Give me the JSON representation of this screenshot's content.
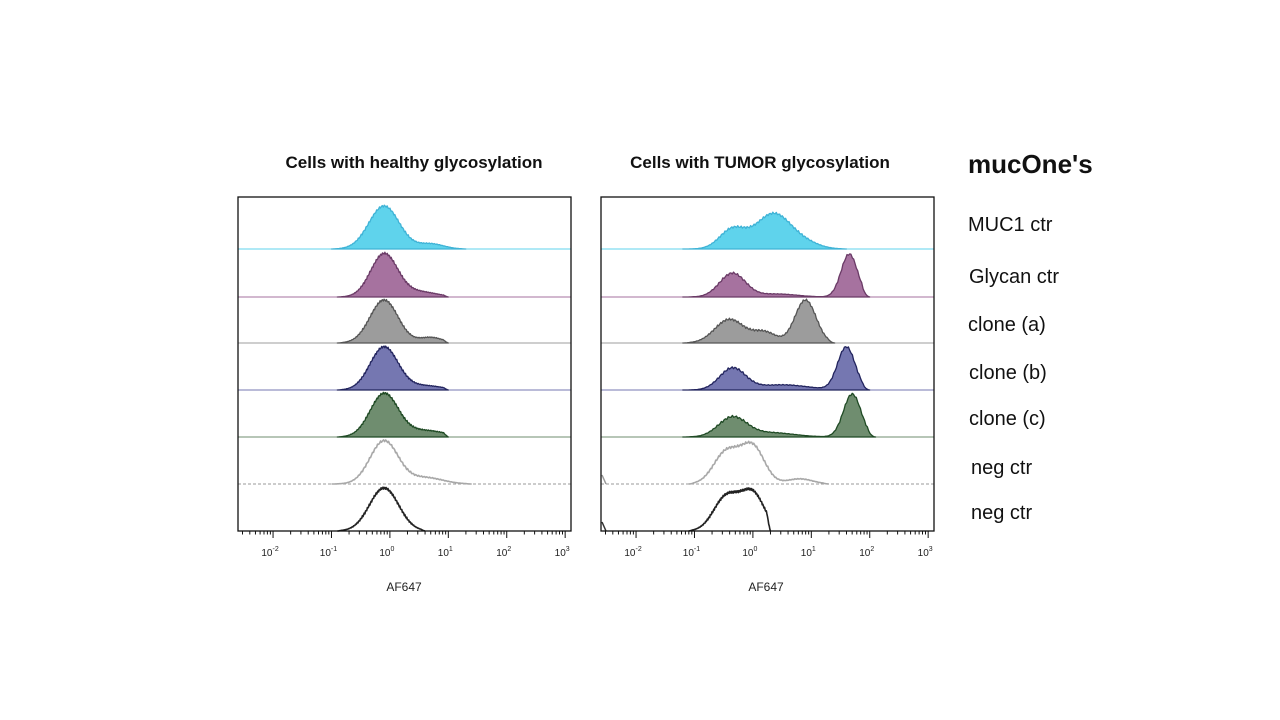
{
  "chart_data": {
    "type": "histogram",
    "legend_title": "mucOne's",
    "series": [
      {
        "name": "MUC1 ctr",
        "fill": "#5fd3ec",
        "stroke": "#3fb3d6",
        "filled": true,
        "dashed_baseline": false
      },
      {
        "name": "Glycan ctr",
        "fill": "#a6729f",
        "stroke": "#6a3a66",
        "filled": true,
        "dashed_baseline": false
      },
      {
        "name": "clone (a)",
        "fill": "#9c9c9c",
        "stroke": "#555555",
        "filled": true,
        "dashed_baseline": false
      },
      {
        "name": "clone (b)",
        "fill": "#7577b1",
        "stroke": "#22245e",
        "filled": true,
        "dashed_baseline": false
      },
      {
        "name": "clone (c)",
        "fill": "#6f8d6f",
        "stroke": "#1f4a24",
        "filled": true,
        "dashed_baseline": false
      },
      {
        "name": "neg ctr",
        "fill": "none",
        "stroke": "#a8a8a8",
        "filled": false,
        "dashed_baseline": true
      },
      {
        "name": "neg ctr",
        "fill": "none",
        "stroke": "#222222",
        "filled": false,
        "dashed_baseline": false
      }
    ],
    "panels": [
      {
        "title": "Cells with healthy glycosylation",
        "xlabel": "AF647",
        "xscale": "log",
        "xlim": [
          -2.6,
          3.1
        ],
        "xticks": [
          {
            "base": "10",
            "exp": "-2",
            "log": -2
          },
          {
            "base": "10",
            "exp": "-1",
            "log": -1
          },
          {
            "base": "10",
            "exp": "0",
            "log": 0
          },
          {
            "base": "10",
            "exp": "1",
            "log": 1
          },
          {
            "base": "10",
            "exp": "2",
            "log": 2
          },
          {
            "base": "10",
            "exp": "3",
            "log": 3
          }
        ],
        "histograms": [
          {
            "series": "MUC1 ctr",
            "peaks": [
              {
                "x": -0.1,
                "h": 1.0,
                "w": 0.26
              },
              {
                "x": 0.7,
                "h": 0.12,
                "w": 0.22
              }
            ],
            "range": [
              -1.0,
              1.3
            ]
          },
          {
            "series": "Glycan ctr",
            "peaks": [
              {
                "x": -0.1,
                "h": 1.0,
                "w": 0.23
              },
              {
                "x": 0.5,
                "h": 0.12,
                "w": 0.3
              }
            ],
            "range": [
              -0.9,
              1.0
            ]
          },
          {
            "series": "clone (a)",
            "peaks": [
              {
                "x": -0.1,
                "h": 1.0,
                "w": 0.24
              },
              {
                "x": 0.7,
                "h": 0.13,
                "w": 0.2
              }
            ],
            "range": [
              -0.9,
              1.0
            ]
          },
          {
            "series": "clone (b)",
            "peaks": [
              {
                "x": -0.1,
                "h": 1.0,
                "w": 0.24
              },
              {
                "x": 0.6,
                "h": 0.1,
                "w": 0.3
              }
            ],
            "range": [
              -0.9,
              1.0
            ]
          },
          {
            "series": "clone (c)",
            "peaks": [
              {
                "x": -0.1,
                "h": 1.0,
                "w": 0.24
              },
              {
                "x": 0.6,
                "h": 0.15,
                "w": 0.35
              }
            ],
            "range": [
              -0.9,
              1.0
            ]
          },
          {
            "series": "neg ctr",
            "peaks": [
              {
                "x": -0.1,
                "h": 1.0,
                "w": 0.24
              },
              {
                "x": 0.6,
                "h": 0.15,
                "w": 0.3
              }
            ],
            "range": [
              -1.0,
              1.4
            ]
          },
          {
            "series": "neg ctr",
            "peaks": [
              {
                "x": -0.1,
                "h": 1.0,
                "w": 0.25
              }
            ],
            "range": [
              -0.9,
              0.6
            ]
          }
        ]
      },
      {
        "title": "Cells with TUMOR glycosylation",
        "xlabel": "AF647",
        "xscale": "log",
        "xlim": [
          -2.6,
          3.1
        ],
        "xticks": [
          {
            "base": "10",
            "exp": "-2",
            "log": -2
          },
          {
            "base": "10",
            "exp": "-1",
            "log": -1
          },
          {
            "base": "10",
            "exp": "0",
            "log": 0
          },
          {
            "base": "10",
            "exp": "1",
            "log": 1
          },
          {
            "base": "10",
            "exp": "2",
            "log": 2
          },
          {
            "base": "10",
            "exp": "3",
            "log": 3
          }
        ],
        "histograms": [
          {
            "series": "MUC1 ctr",
            "peaks": [
              {
                "x": -0.35,
                "h": 0.45,
                "w": 0.22
              },
              {
                "x": 0.35,
                "h": 0.82,
                "w": 0.3
              },
              {
                "x": 0.9,
                "h": 0.12,
                "w": 0.25
              }
            ],
            "range": [
              -1.2,
              1.6
            ]
          },
          {
            "series": "Glycan ctr",
            "peaks": [
              {
                "x": -0.35,
                "h": 0.55,
                "w": 0.22
              },
              {
                "x": 0.4,
                "h": 0.07,
                "w": 0.35
              },
              {
                "x": 1.65,
                "h": 1.0,
                "w": 0.14
              }
            ],
            "range": [
              -1.2,
              2.0
            ]
          },
          {
            "series": "clone (a)",
            "peaks": [
              {
                "x": -0.4,
                "h": 0.55,
                "w": 0.25
              },
              {
                "x": 0.2,
                "h": 0.25,
                "w": 0.2
              },
              {
                "x": 0.9,
                "h": 1.0,
                "w": 0.18
              }
            ],
            "range": [
              -1.2,
              1.4
            ]
          },
          {
            "series": "clone (b)",
            "peaks": [
              {
                "x": -0.35,
                "h": 0.5,
                "w": 0.22
              },
              {
                "x": 0.5,
                "h": 0.12,
                "w": 0.45
              },
              {
                "x": 1.6,
                "h": 1.0,
                "w": 0.15
              }
            ],
            "range": [
              -1.2,
              2.0
            ]
          },
          {
            "series": "clone (c)",
            "peaks": [
              {
                "x": -0.35,
                "h": 0.45,
                "w": 0.24
              },
              {
                "x": 0.3,
                "h": 0.1,
                "w": 0.4
              },
              {
                "x": 1.7,
                "h": 1.0,
                "w": 0.15
              }
            ],
            "range": [
              -1.2,
              2.1
            ]
          },
          {
            "series": "neg ctr",
            "peaks": [
              {
                "x": -0.45,
                "h": 0.75,
                "w": 0.22
              },
              {
                "x": 0.0,
                "h": 0.85,
                "w": 0.2
              },
              {
                "x": 0.8,
                "h": 0.12,
                "w": 0.22
              }
            ],
            "range": [
              -1.1,
              1.3
            ]
          },
          {
            "series": "neg ctr",
            "peaks": [
              {
                "x": -0.45,
                "h": 0.8,
                "w": 0.22
              },
              {
                "x": 0.0,
                "h": 0.85,
                "w": 0.2
              }
            ],
            "range": [
              -1.1,
              0.3
            ]
          }
        ]
      }
    ]
  }
}
